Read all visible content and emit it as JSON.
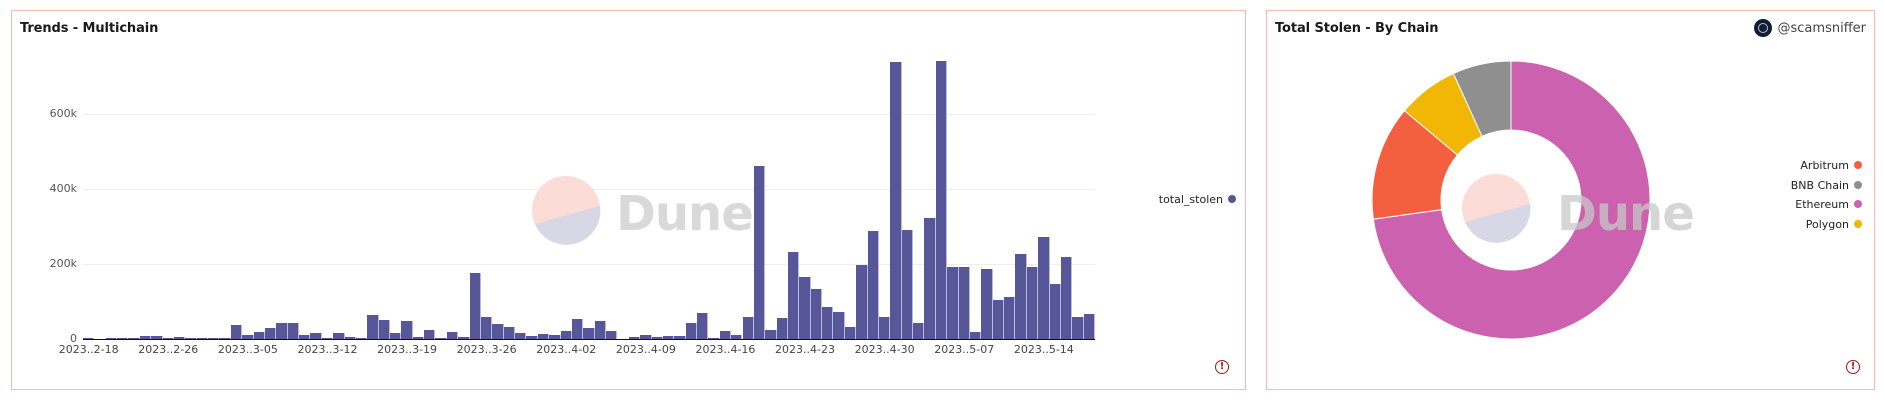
{
  "left_panel": {
    "title": "Trends - Multichain",
    "legend": [
      {
        "label": "total_stolen",
        "color": "#565699"
      }
    ],
    "watermark": "Dune",
    "alert_icon": "!"
  },
  "right_panel": {
    "title": "Total Stolen - By Chain",
    "author": "@scamsniffer",
    "watermark": "Dune",
    "alert_icon": "!",
    "legend": [
      {
        "label": "Arbitrum",
        "color": "#f4603f"
      },
      {
        "label": "BNB Chain",
        "color": "#8f8f8f"
      },
      {
        "label": "Ethereum",
        "color": "#cc61af"
      },
      {
        "label": "Polygon",
        "color": "#f2b705"
      }
    ]
  },
  "chart_data": [
    {
      "type": "bar",
      "title": "Trends - Multichain",
      "xlabel": "",
      "ylabel": "",
      "ylim": [
        0,
        760000
      ],
      "yticks": [
        0,
        200000,
        400000,
        600000
      ],
      "ytick_labels": [
        "0",
        "200k",
        "400k",
        "600k"
      ],
      "grid": true,
      "legend_position": "right",
      "x_tick_labels": [
        "2023..2-18",
        "2023..2-26",
        "2023..3-05",
        "2023..3-12",
        "2023..3-19",
        "2023..3-26",
        "2023..4-02",
        "2023..4-09",
        "2023..4-16",
        "2023..4-23",
        "2023..4-30",
        "2023..5-07",
        "2023..5-14"
      ],
      "x_tick_every": 7,
      "series": [
        {
          "name": "total_stolen",
          "color": "#565699",
          "values": [
            1000,
            0,
            1000,
            2500,
            2000,
            9000,
            8000,
            2000,
            5000,
            4000,
            4000,
            1000,
            1000,
            37000,
            10000,
            18000,
            29000,
            43000,
            43000,
            12000,
            16000,
            4000,
            15000,
            5000,
            2000,
            65000,
            52000,
            15000,
            47000,
            6000,
            25000,
            4000,
            19000,
            6000,
            176000,
            59000,
            40000,
            32000,
            15000,
            7000,
            14000,
            12000,
            22000,
            54000,
            29000,
            48000,
            21000,
            0,
            6000,
            10000,
            5000,
            8000,
            7000,
            43000,
            70000,
            2000,
            21000,
            12000,
            58000,
            461000,
            25000,
            55000,
            231000,
            165000,
            134000,
            86000,
            72000,
            33000,
            197000,
            288000,
            60000,
            739000,
            291000,
            44000,
            324000,
            742000,
            191000,
            193000,
            19000,
            188000,
            105000,
            111000,
            226000,
            193000,
            273000,
            148000,
            218000,
            60000,
            68000
          ]
        }
      ]
    },
    {
      "type": "pie",
      "title": "Total Stolen - By Chain",
      "donut": true,
      "legend_position": "right",
      "categories": [
        "Ethereum",
        "Arbitrum",
        "Polygon",
        "BNB Chain"
      ],
      "values": [
        72.8,
        13.3,
        7.1,
        6.8
      ],
      "unit": "percent (estimated)",
      "colors": [
        "#cc61af",
        "#f4603f",
        "#f2b705",
        "#8f8f8f"
      ]
    }
  ]
}
